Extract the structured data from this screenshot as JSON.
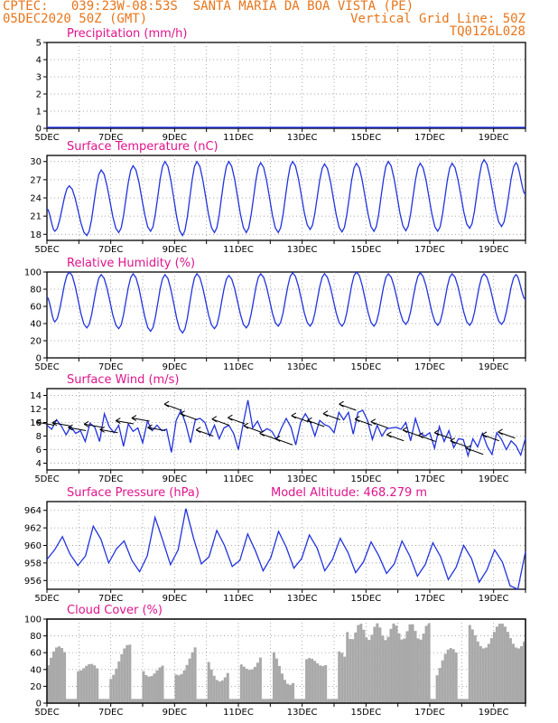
{
  "header": {
    "line1_left": "CPTEC:   039:23W-08:53S  SANTA MARIA DA BOA VISTA (PE)",
    "line2_left": "05DEC2020 50Z (GMT)",
    "line2_right": "Vertical Grid Line: 50Z",
    "line3_right": "TQ0126L028"
  },
  "colors": {
    "line": "#2233dd",
    "bar": "#a9a9a9",
    "title": "#e0148c",
    "header": "#e8751a"
  },
  "x_tick_labels": [
    "5DEC",
    "7DEC",
    "9DEC",
    "11DEC",
    "13DEC",
    "15DEC",
    "17DEC",
    "19DEC"
  ],
  "chart_data": [
    {
      "type": "line",
      "title": "Precipitation (mm/h)",
      "ylim": [
        0,
        5
      ],
      "yticks": [
        "0",
        "1",
        "2",
        "3",
        "4",
        "5"
      ],
      "x": [
        "5DEC",
        "19DEC"
      ],
      "values": [
        0,
        0
      ]
    },
    {
      "type": "line",
      "title": "Surface Temperature (nC)",
      "ylim": [
        17,
        31
      ],
      "yticks": [
        "18",
        "21",
        "24",
        "27",
        "30"
      ],
      "daily_max": [
        26.0,
        28.6,
        29.3,
        30.0,
        30.0,
        30.0,
        29.8,
        30.0,
        29.6,
        29.7,
        30.0,
        29.7,
        29.7,
        30.3,
        29.8
      ],
      "daily_min": [
        18.5,
        17.8,
        18.3,
        18.5,
        17.8,
        18.3,
        18.3,
        18.3,
        18.8,
        18.4,
        18.5,
        18.6,
        18.5,
        19.0,
        19.3
      ]
    },
    {
      "type": "line",
      "title": "Relative Humidity (%)",
      "ylim": [
        0,
        100
      ],
      "yticks": [
        "0",
        "20",
        "40",
        "60",
        "80",
        "100"
      ],
      "daily_max": [
        100,
        97,
        98,
        97,
        98,
        96,
        98,
        99,
        98,
        100,
        98,
        99,
        98,
        98,
        97
      ],
      "daily_min": [
        42,
        35,
        34,
        31,
        29,
        34,
        35,
        37,
        37,
        37,
        37,
        39,
        38,
        38,
        39
      ]
    },
    {
      "type": "line",
      "title": "Surface Wind (m/s)",
      "ylim": [
        3,
        15
      ],
      "yticks": [
        "4",
        "6",
        "8",
        "10",
        "12",
        "14"
      ],
      "series_values": [
        9.6,
        9,
        10.4,
        9.5,
        8.2,
        9.4,
        8.4,
        8.8,
        7.2,
        9.9,
        9.3,
        7.2,
        11.3,
        9.4,
        8.5,
        9.6,
        6.5,
        9.8,
        8.7,
        9.2,
        7.0,
        10.2,
        8.8,
        9.6,
        8.8,
        9.0,
        5.6,
        10.3,
        11.8,
        9.8,
        7.0,
        10.4,
        10.6,
        10.0,
        8.0,
        9.6,
        7.6,
        9.2,
        9.6,
        8.4,
        6.0,
        9.8,
        13.3,
        9.2,
        10.2,
        8.6,
        9.1,
        8.7,
        7.5,
        9.2,
        10.6,
        9.3,
        6.7,
        10.0,
        11.3,
        10.1,
        8.0,
        10.3,
        9.7,
        9.4,
        8.5,
        11.5,
        10.4,
        11.5,
        8.3,
        11.5,
        11.8,
        10.3,
        7.5,
        9.6,
        8.0,
        9.1,
        9.2,
        9.3,
        9.0,
        10.0,
        7.3,
        10.6,
        8.4,
        8.0,
        8.5,
        6.2,
        9.4,
        7.2,
        8.8,
        6.3,
        7.6,
        7.5,
        5.1,
        7.6,
        6.4,
        8.4,
        6.5,
        5.3,
        8.5,
        7.5,
        6.0,
        7.3,
        6.6,
        5.2,
        7.7
      ]
    },
    {
      "type": "line",
      "title": "Surface Pressure (hPa)",
      "annotation": "Model Altitude: 468.279 m",
      "ylim": [
        955,
        965
      ],
      "yticks": [
        "956",
        "958",
        "960",
        "962",
        "964"
      ],
      "series_values": [
        958.4,
        959.5,
        961.0,
        959.0,
        957.7,
        958.8,
        962.2,
        960.7,
        958.0,
        959.6,
        960.5,
        958.3,
        957.0,
        958.8,
        963.2,
        960.6,
        957.8,
        959.5,
        964.2,
        960.8,
        957.9,
        958.7,
        961.7,
        960.0,
        957.6,
        958.3,
        961.3,
        959.4,
        957.1,
        958.6,
        961.6,
        959.8,
        957.4,
        958.5,
        961.2,
        959.7,
        957.1,
        958.4,
        960.8,
        959.2,
        956.9,
        958.1,
        960.4,
        958.8,
        956.8,
        957.9,
        960.5,
        958.8,
        956.5,
        957.8,
        960.3,
        958.7,
        956.1,
        957.5,
        960.0,
        958.5,
        955.8,
        957.2,
        959.5,
        958.1,
        955.4,
        954.8,
        959.3
      ]
    },
    {
      "type": "bar",
      "title": "Cloud Cover (%)",
      "ylim": [
        0,
        100
      ],
      "yticks": [
        "0",
        "20",
        "40",
        "60",
        "80",
        "100"
      ]
    }
  ]
}
